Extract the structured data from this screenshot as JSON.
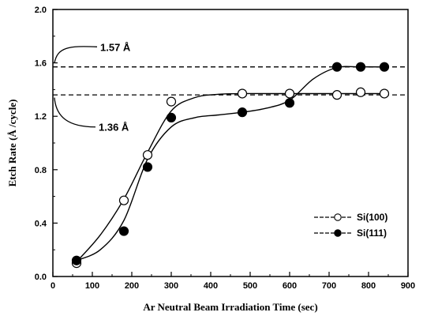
{
  "chart_data": {
    "type": "line",
    "xlabel": "Ar Neutral Beam Irradiation Time (sec)",
    "ylabel": "Etch Rate (Å /cycle)",
    "xlim": [
      0,
      900
    ],
    "ylim": [
      0.0,
      2.0
    ],
    "xticks": [
      "0",
      "100",
      "200",
      "300",
      "400",
      "500",
      "600",
      "700",
      "800",
      "900"
    ],
    "yticks": [
      "0.0",
      "0.4",
      "0.8",
      "1.2",
      "1.6",
      "2.0"
    ],
    "grid": false,
    "legend_position": "center-right",
    "series": [
      {
        "name": "Si(100)",
        "marker": "open-circle",
        "x": [
          60,
          180,
          240,
          300,
          480,
          600,
          720,
          780,
          840
        ],
        "y": [
          0.1,
          0.57,
          0.91,
          1.31,
          1.37,
          1.37,
          1.36,
          1.38,
          1.37
        ],
        "fit_x": [
          60,
          120,
          180,
          240,
          300,
          360,
          420,
          480,
          540,
          600,
          660,
          720,
          780,
          840
        ],
        "fit_y": [
          0.11,
          0.31,
          0.58,
          0.93,
          1.24,
          1.34,
          1.365,
          1.37,
          1.37,
          1.37,
          1.37,
          1.37,
          1.37,
          1.37
        ]
      },
      {
        "name": "Si(111)",
        "marker": "filled-circle",
        "x": [
          60,
          180,
          240,
          300,
          480,
          600,
          720,
          780,
          840
        ],
        "y": [
          0.12,
          0.34,
          0.82,
          1.19,
          1.23,
          1.3,
          1.57,
          1.57,
          1.57
        ],
        "fit_x": [
          60,
          120,
          180,
          240,
          300,
          360,
          420,
          480,
          540,
          600,
          660,
          720,
          780,
          840
        ],
        "fit_y": [
          0.12,
          0.2,
          0.42,
          0.88,
          1.12,
          1.19,
          1.21,
          1.23,
          1.26,
          1.32,
          1.48,
          1.565,
          1.57,
          1.57
        ]
      }
    ],
    "reference_lines": [
      {
        "y": 1.57,
        "style": "dashed"
      },
      {
        "y": 1.36,
        "style": "dashed"
      }
    ],
    "annotations": [
      {
        "text": "1.57 Å",
        "points_to_y": 1.6
      },
      {
        "text": "1.36 Å",
        "points_to_y": 1.34
      }
    ]
  }
}
